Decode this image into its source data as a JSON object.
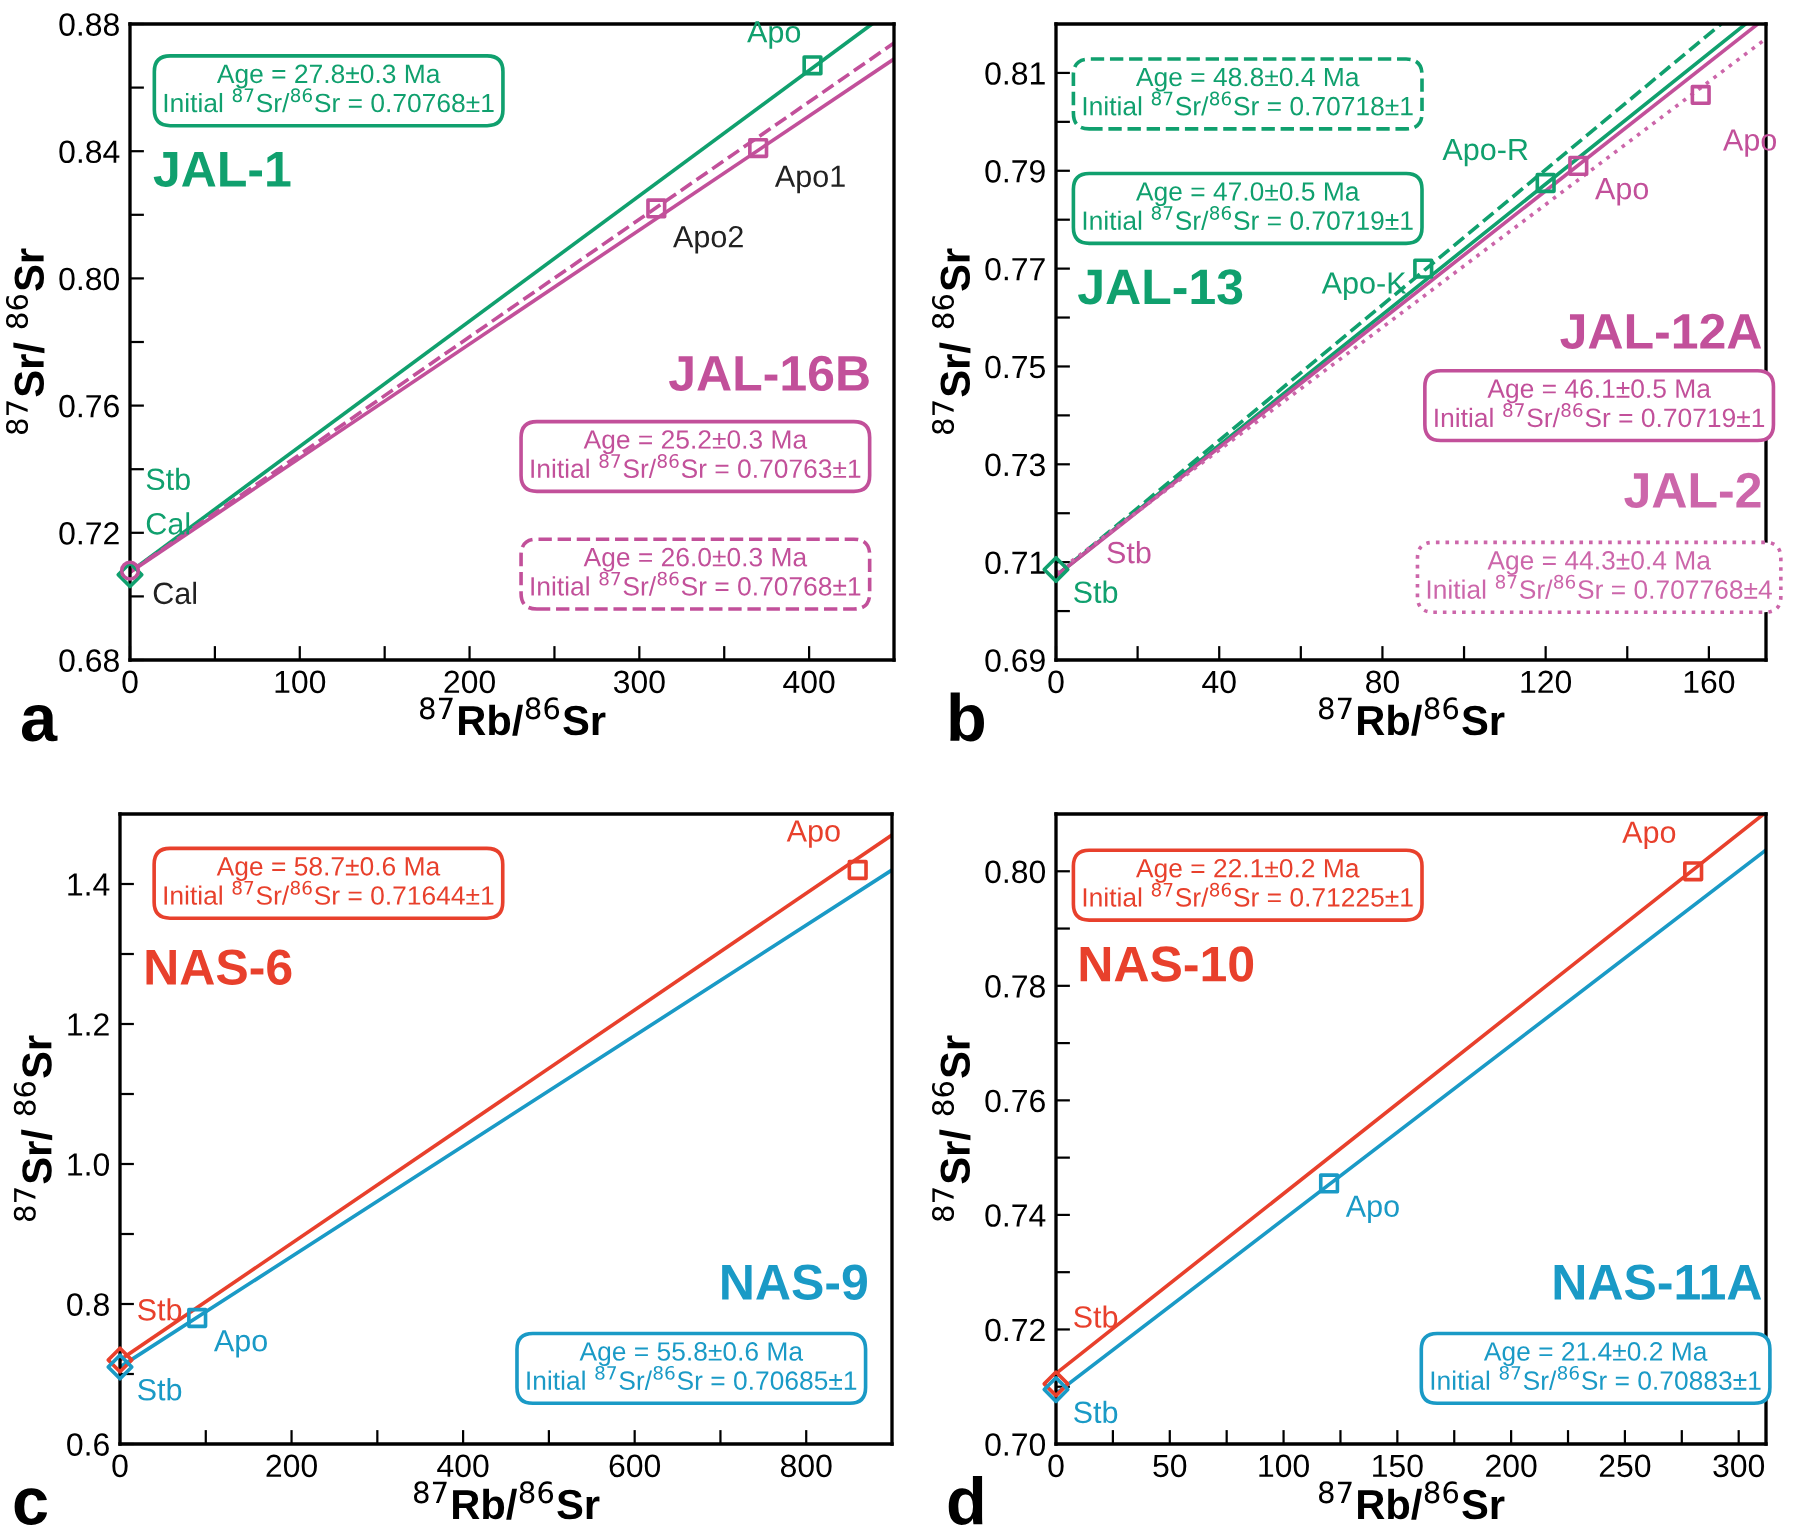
{
  "chart_data": [
    {
      "type": "line",
      "xlabel": "$^{87}$Rb/$^{86}$Sr",
      "ylabel": "$^{87}$Sr/ $^{86}$Sr",
      "xlim": [
        0,
        450
      ],
      "xticks": [
        0,
        {
          "value": 50,
          "label": null
        },
        100,
        {
          "value": 150,
          "label": null
        },
        200,
        {
          "value": 250,
          "label": null
        },
        300,
        {
          "value": 350,
          "label": null
        },
        400
      ],
      "ylim": [
        0.68,
        0.88
      ],
      "yticks": [
        0.68,
        {
          "value": 0.7,
          "label": null
        },
        0.72,
        {
          "value": 0.74,
          "label": null
        },
        0.76,
        {
          "value": 0.78,
          "label": null
        },
        {
          "value": 0.8,
          "label": "0.80"
        },
        {
          "value": 0.82,
          "label": null
        },
        0.84,
        {
          "value": 0.86,
          "label": null
        },
        0.88
      ],
      "series": [
        {
          "name": "JAL-1",
          "color": "#10a06e",
          "x": [
            0,
            437
          ],
          "values": [
            0.7077,
            0.88
          ],
          "line_style": "solid"
        },
        {
          "name": "JAL-16B",
          "color": "#c2509a",
          "x": [
            0,
            450
          ],
          "values": [
            0.7076,
            0.869
          ],
          "line_style": "solid"
        },
        {
          "color": "#c2509a",
          "x": [
            0,
            450
          ],
          "values": [
            0.7077,
            0.874
          ],
          "line_style": "dashed"
        },
        {
          "type": "scatter",
          "color": "#10a06e",
          "x": [
            0
          ],
          "values": [
            0.7068
          ],
          "marker": "diamond"
        },
        {
          "type": "scatter",
          "color": "#c2509a",
          "x": [
            0
          ],
          "values": [
            0.7081
          ],
          "marker": "circle"
        },
        {
          "type": "scatter",
          "color": "#10a06e",
          "x": [
            402
          ],
          "values": [
            0.867
          ],
          "marker": "square"
        },
        {
          "type": "scatter",
          "color": "#c2509a",
          "x": [
            310,
            370
          ],
          "values": [
            0.822,
            0.841
          ],
          "marker": "square"
        }
      ],
      "annotations": [
        "Age = 27.8±0.3 Ma\nInitial $^{87}$Sr/$^{86}$Sr = 0.70768±1",
        "Age = 25.2±0.3 Ma\nInitial $^{87}$Sr/$^{86}$Sr = 0.70763±1",
        "Age = 26.0±0.3 Ma\nInitial $^{87}$Sr/$^{86}$Sr = 0.70768±1",
        {
          "text": "Apo",
          "x": 402,
          "y": 0.867
        },
        {
          "text": "Apo1",
          "x": 370,
          "y": 0.841
        },
        {
          "text": "Apo2",
          "x": 310,
          "y": 0.822
        },
        "Stb",
        "Cal",
        {
          "text": "Cal",
          "x": 0,
          "y": 0.7081
        },
        "a"
      ]
    },
    {
      "type": "line",
      "xlabel": "$^{87}$Rb/$^{86}$Sr",
      "ylabel": "$^{87}$Sr/ $^{86}$Sr",
      "xlim": [
        0,
        174
      ],
      "xticks": [
        0,
        {
          "value": 20,
          "label": null
        },
        40,
        {
          "value": 60,
          "label": null
        },
        80,
        {
          "value": 100,
          "label": null
        },
        120,
        {
          "value": 140,
          "label": null
        },
        160
      ],
      "ylim": [
        0.69,
        0.82
      ],
      "yticks": [
        0.69,
        {
          "value": 0.7,
          "label": null
        },
        0.71,
        {
          "value": 0.72,
          "label": null
        },
        0.73,
        {
          "value": 0.74,
          "label": null
        },
        0.75,
        {
          "value": 0.76,
          "label": null
        },
        0.77,
        {
          "value": 0.78,
          "label": null
        },
        0.79,
        {
          "value": 0.8,
          "label": null
        },
        0.81
      ],
      "series": [
        {
          "name": "JAL-13",
          "color": "#10a06e",
          "x": [
            0,
            169
          ],
          "values": [
            0.7072,
            0.82
          ],
          "line_style": "solid"
        },
        {
          "color": "#10a06e",
          "x": [
            0,
            163
          ],
          "values": [
            0.7072,
            0.82
          ],
          "line_style": "dashed"
        },
        {
          "name": "JAL-12A",
          "color": "#c2509a",
          "x": [
            0,
            172
          ],
          "values": [
            0.7072,
            0.82
          ],
          "line_style": "solid"
        },
        {
          "name": "JAL-2",
          "color": "#cc66aa",
          "x": [
            0,
            174
          ],
          "values": [
            0.7078,
            0.817
          ],
          "line_style": "dotted"
        },
        {
          "type": "scatter",
          "color": "#10a06e",
          "x": [
            0
          ],
          "values": [
            0.7085
          ],
          "marker": "diamond"
        },
        {
          "type": "scatter",
          "color": "#10a06e",
          "x": [
            90,
            120
          ],
          "values": [
            0.77,
            0.7875
          ],
          "marker": "square"
        },
        {
          "type": "scatter",
          "color": "#c2509a",
          "x": [
            128,
            158
          ],
          "values": [
            0.791,
            0.8055
          ],
          "marker": "square"
        }
      ],
      "annotations": [
        "Age = 48.8±0.4 Ma\nInitial $^{87}$Sr/$^{86}$Sr = 0.70718±1",
        "Age = 47.0±0.5 Ma\nInitial $^{87}$Sr/$^{86}$Sr = 0.70719±1",
        "Age = 46.1±0.5 Ma\nInitial $^{87}$Sr/$^{86}$Sr = 0.70719±1",
        "Age = 44.3±0.4 Ma\nInitial $^{87}$Sr/$^{86}$Sr = 0.707768±4",
        {
          "text": "Apo-R",
          "x": 120,
          "y": 0.7875
        },
        {
          "text": "Apo-K",
          "x": 90,
          "y": 0.77
        },
        {
          "text": "Apo",
          "x": 128,
          "y": 0.791
        },
        {
          "text": "Apo",
          "x": 158,
          "y": 0.8055
        },
        {
          "text": "Stb",
          "x": 0,
          "y": 0.7085
        },
        {
          "text": "Stb",
          "x": 0,
          "y": 0.7085
        },
        "b"
      ]
    },
    {
      "type": "line",
      "xlabel": "$^{87}$Rb/$^{86}$Sr",
      "ylabel": "$^{87}$Sr/ $^{86}$Sr",
      "xlim": [
        0,
        900
      ],
      "xticks": [
        0,
        {
          "value": 100,
          "label": null
        },
        200,
        {
          "value": 300,
          "label": null
        },
        400,
        {
          "value": 500,
          "label": null
        },
        600,
        {
          "value": 700,
          "label": null
        },
        800
      ],
      "ylim": [
        0.6,
        1.5
      ],
      "yticks": [
        0.6,
        {
          "value": 0.7,
          "label": null
        },
        0.8,
        {
          "value": 0.9,
          "label": null
        },
        {
          "value": 1.0,
          "label": "1.0"
        },
        {
          "value": 1.1,
          "label": null
        },
        1.2,
        {
          "value": 1.3,
          "label": null
        },
        1.4
      ],
      "series": [
        {
          "name": "NAS-6",
          "color": "#e8402c",
          "x": [
            0,
            900
          ],
          "values": [
            0.72,
            1.47
          ],
          "line_style": "solid"
        },
        {
          "name": "NAS-9",
          "color": "#1a9ac6",
          "x": [
            0,
            900
          ],
          "values": [
            0.71,
            1.42
          ],
          "line_style": "solid"
        },
        {
          "type": "scatter",
          "color": "#e8402c",
          "x": [
            860
          ],
          "values": [
            1.42
          ],
          "marker": "square"
        },
        {
          "type": "scatter",
          "color": "#e8402c",
          "x": [
            0
          ],
          "values": [
            0.72
          ],
          "marker": "diamond"
        },
        {
          "type": "scatter",
          "color": "#1a9ac6",
          "x": [
            0
          ],
          "values": [
            0.71
          ],
          "marker": "diamond"
        },
        {
          "type": "scatter",
          "color": "#1a9ac6",
          "x": [
            90
          ],
          "values": [
            0.78
          ],
          "marker": "square"
        }
      ],
      "annotations": [
        "Age = 58.7±0.6 Ma\nInitial $^{87}$Sr/$^{86}$Sr = 0.71644±1",
        "Age = 55.8±0.6 Ma\nInitial $^{87}$Sr/$^{86}$Sr = 0.70685±1",
        {
          "text": "Apo",
          "x": 860,
          "y": 1.42
        },
        {
          "text": "Stb",
          "x": 0,
          "y": 0.72
        },
        {
          "text": "Apo",
          "x": 90,
          "y": 0.78
        },
        {
          "text": "Stb",
          "x": 0,
          "y": 0.71
        },
        "c"
      ]
    },
    {
      "type": "line",
      "xlabel": "$^{87}$Rb/$^{86}$Sr",
      "ylabel": "$^{87}$Sr/ $^{86}$Sr",
      "xlim": [
        0,
        312
      ],
      "xticks": [
        0,
        {
          "value": 25,
          "label": null
        },
        50,
        {
          "value": 75,
          "label": null
        },
        100,
        {
          "value": 125,
          "label": null
        },
        150,
        {
          "value": 175,
          "label": null
        },
        200,
        {
          "value": 225,
          "label": null
        },
        250,
        {
          "value": 275,
          "label": null
        },
        300
      ],
      "ylim": [
        0.7,
        0.81
      ],
      "yticks": [
        {
          "value": 0.7,
          "label": "0.70"
        },
        {
          "value": 0.71,
          "label": null
        },
        0.72,
        {
          "value": 0.73,
          "label": null
        },
        0.74,
        {
          "value": 0.75,
          "label": null
        },
        0.76,
        {
          "value": 0.77,
          "label": null
        },
        0.78,
        {
          "value": 0.79,
          "label": null
        },
        {
          "value": 0.8,
          "label": "0.80"
        }
      ],
      "series": [
        {
          "name": "NAS-10",
          "color": "#e8402c",
          "x": [
            0,
            311
          ],
          "values": [
            0.7123,
            0.81
          ],
          "line_style": "solid"
        },
        {
          "name": "NAS-11A",
          "color": "#1a9ac6",
          "x": [
            0,
            312
          ],
          "values": [
            0.7088,
            0.8037
          ],
          "line_style": "solid"
        },
        {
          "type": "scatter",
          "color": "#e8402c",
          "x": [
            280
          ],
          "values": [
            0.8
          ],
          "marker": "square"
        },
        {
          "type": "scatter",
          "color": "#e8402c",
          "x": [
            0
          ],
          "values": [
            0.7105
          ],
          "marker": "diamond"
        },
        {
          "type": "scatter",
          "color": "#1a9ac6",
          "x": [
            0
          ],
          "values": [
            0.7095
          ],
          "marker": "diamond"
        },
        {
          "type": "scatter",
          "color": "#1a9ac6",
          "x": [
            120
          ],
          "values": [
            0.7455
          ],
          "marker": "square"
        }
      ],
      "annotations": [
        "Age = 22.1±0.2 Ma\nInitial $^{87}$Sr/$^{86}$Sr = 0.71225±1",
        "Age = 21.4±0.2 Ma\nInitial $^{87}$Sr/$^{86}$Sr = 0.70883±1",
        {
          "text": "Apo",
          "x": 280,
          "y": 0.8
        },
        {
          "text": "Stb",
          "x": 0,
          "y": 0.7105
        },
        {
          "text": "Apo",
          "x": 120,
          "y": 0.7455
        },
        {
          "text": "Stb",
          "x": 0,
          "y": 0.7095
        },
        "d"
      ]
    }
  ]
}
